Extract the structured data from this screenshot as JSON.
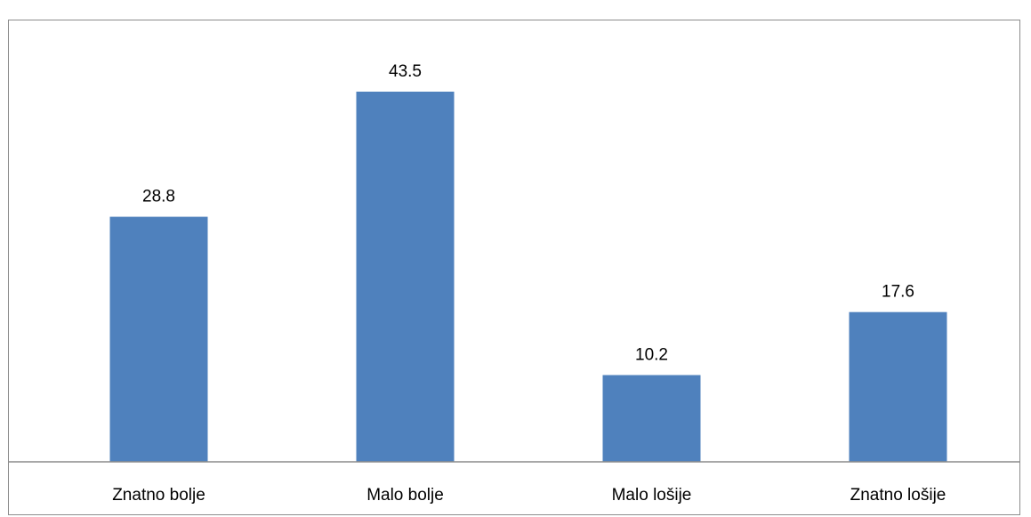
{
  "chart_data": {
    "type": "bar",
    "categories": [
      "Znatno bolje",
      "Malo bolje",
      "Malo lošije",
      "Znatno lošije"
    ],
    "values": [
      28.8,
      43.5,
      10.2,
      17.6
    ],
    "value_labels": [
      "28.8",
      "43.5",
      "10.2",
      "17.6"
    ],
    "title": "",
    "xlabel": "",
    "ylabel": "",
    "ylim": [
      0,
      50
    ],
    "grid": false,
    "legend": "none",
    "bar_color": "#4F81BD"
  }
}
